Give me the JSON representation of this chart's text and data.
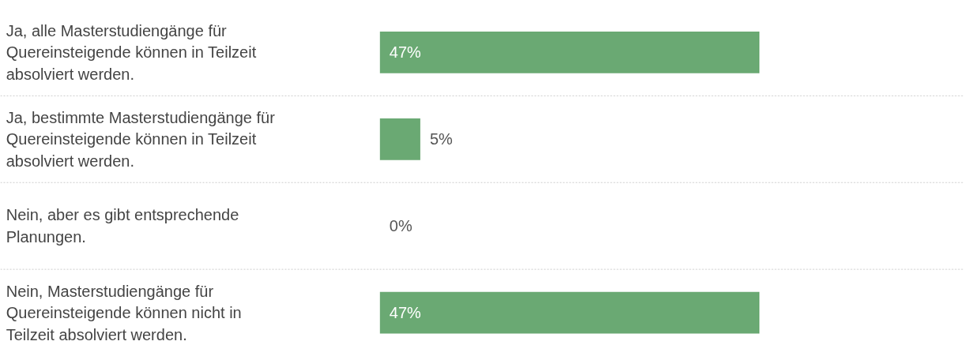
{
  "chart_data": {
    "type": "bar",
    "orientation": "horizontal",
    "categories": [
      "Ja, alle Masterstudiengänge für Quereinsteigende können in Teilzeit absolviert werden.",
      "Ja, bestimmte Masterstudiengänge für Quereinsteigende können in Teilzeit absolviert werden.",
      "Nein, aber es gibt entsprechende Planungen.",
      "Nein, Masterstudiengänge für Quereinsteigende können nicht in Teilzeit absolviert werden."
    ],
    "values": [
      47,
      5,
      0,
      47
    ],
    "value_labels": [
      "47%",
      "5%",
      "0%",
      "47%"
    ],
    "color": "#6aa973",
    "grid": false
  }
}
